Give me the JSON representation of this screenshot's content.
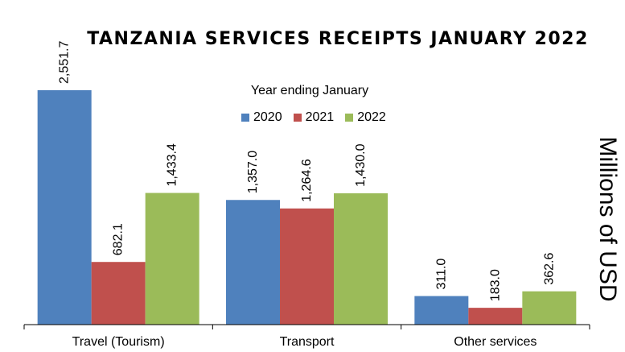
{
  "chart_data": {
    "type": "bar",
    "title": "TANZANIA SERVICES RECEIPTS JANUARY 2022",
    "legend_title": "Year ending January",
    "legend_position": "top-center",
    "categories": [
      "Travel (Tourism)",
      "Transport",
      "Other services"
    ],
    "series": [
      {
        "name": "2020",
        "color": "#4F81BD",
        "values": [
          2551.7,
          1357.0,
          311.0
        ],
        "labels": [
          "2,551.7",
          "1,357.0",
          "311.0"
        ]
      },
      {
        "name": "2021",
        "color": "#C0504D",
        "values": [
          682.1,
          1264.6,
          183.0
        ],
        "labels": [
          "682.1",
          "1,264.6",
          "183.0"
        ]
      },
      {
        "name": "2022",
        "color": "#9BBB59",
        "values": [
          1433.4,
          1430.0,
          362.6
        ],
        "labels": [
          "1,433.4",
          "1,430.0",
          "362.6"
        ]
      }
    ],
    "xlabel": "",
    "ylabel": "Millions of USD",
    "ylim": [
      0,
      2560
    ],
    "grid": false
  }
}
